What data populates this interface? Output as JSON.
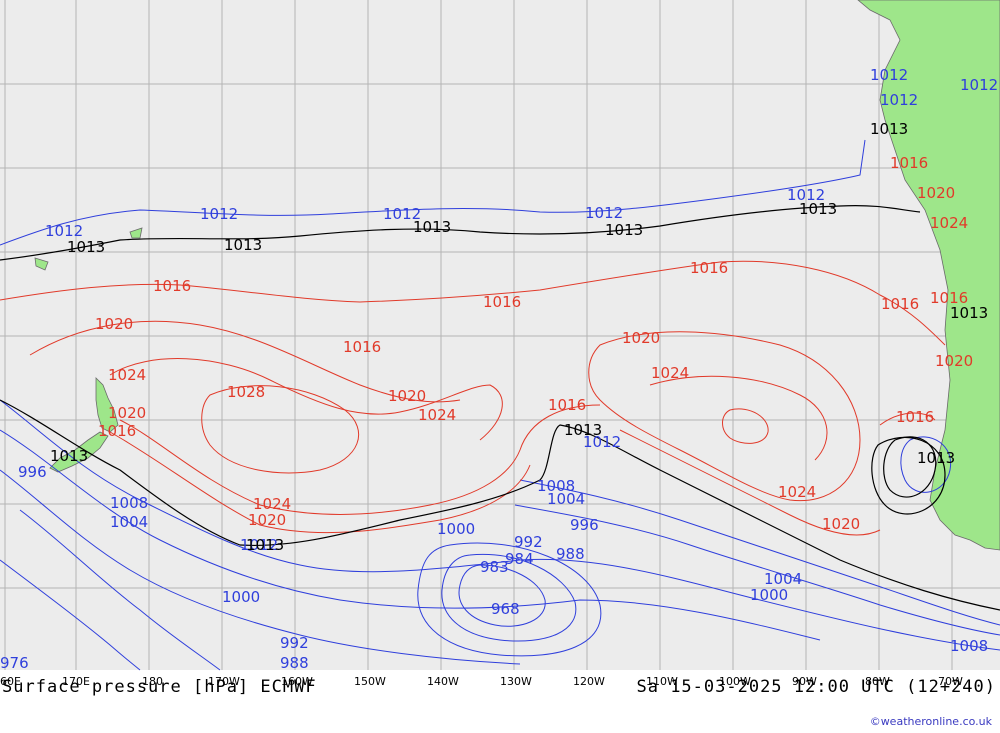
{
  "map": {
    "title": "Surface pressure [hPa] ECMWF",
    "valid_time": "Sa 15-03-2025 12:00 UTC (12+240)",
    "credit": "©weatheronline.co.uk",
    "colors": {
      "ocean": "#ececec",
      "land": "#9ee68a",
      "grid": "#b4b4b4",
      "low_isobar": "#2f3fdc",
      "high_isobar": "#e13a2a",
      "standard_isobar": "#000000"
    },
    "longitude_labels": [
      "60E",
      "170E",
      "180",
      "170W",
      "160W",
      "150W",
      "140W",
      "130W",
      "120W",
      "110W",
      "100W",
      "90W",
      "80W",
      "70W"
    ],
    "isobar_labels": {
      "blue": [
        "1012",
        "1012",
        "1012",
        "1012",
        "1012",
        "1012",
        "996",
        "1008",
        "1004",
        "1008",
        "1004",
        "1000",
        "992",
        "984",
        "988",
        "996",
        "983",
        "968",
        "1000",
        "992",
        "988",
        "976",
        "1004",
        "1000",
        "1008",
        "1012",
        "1012",
        "1012",
        "1012"
      ],
      "red": [
        "1016",
        "1020",
        "1024",
        "1028",
        "1020",
        "1016",
        "1016",
        "1020",
        "1024",
        "1016",
        "1016",
        "1020",
        "1024",
        "1020",
        "1024",
        "1016",
        "1020",
        "1024",
        "1016",
        "1016",
        "1016",
        "1020",
        "1016",
        "1024",
        "1020"
      ],
      "black": [
        "1013",
        "1013",
        "1013",
        "1013",
        "1013",
        "1013",
        "1013",
        "1013",
        "1013",
        "1013",
        "1013"
      ]
    }
  }
}
